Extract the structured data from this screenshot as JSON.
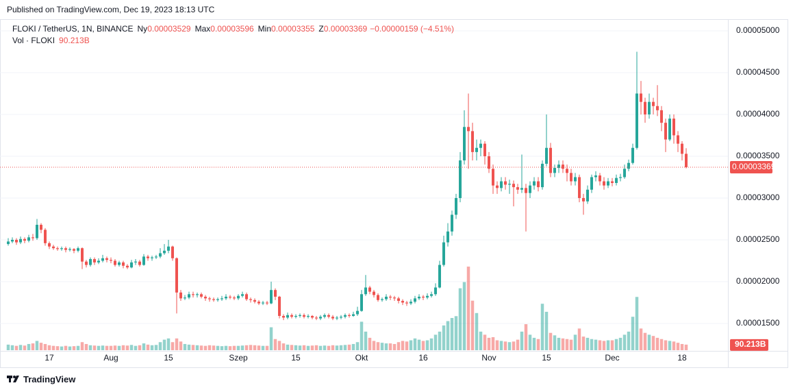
{
  "header": {
    "published": "Published on TradingView.com, Dec 19, 2023 18:13 UTC"
  },
  "chart_data": {
    "type": "candlestick",
    "title": "FLOKI / TetherUS, 1N, BINANCE",
    "ohlc_legend": [
      {
        "label": "Ny",
        "value": "0.00003529"
      },
      {
        "label": "Max",
        "value": "0.00003596"
      },
      {
        "label": "Min",
        "value": "0.00003355"
      },
      {
        "label": "Z",
        "value": "0.00003369"
      }
    ],
    "change": "−0.00000159 (−4.51%)",
    "volume_title": "Vol · FLOKI",
    "volume_last_label": "90.213B",
    "last_price": {
      "value": 3.369e-05,
      "label": "0.00003369"
    },
    "up_color": "#26a69a",
    "down_color": "#ef5350",
    "volume_up_color": "#26a69a80",
    "volume_down_color": "#ef535080",
    "grid": true,
    "ylim": [
      1.172e-05,
      5.139e-05
    ],
    "yticks": [
      {
        "value": 1.5e-05,
        "label": "0.00001500"
      },
      {
        "value": 2e-05,
        "label": "0.00002000"
      },
      {
        "value": 2.5e-05,
        "label": "0.00002500"
      },
      {
        "value": 3e-05,
        "label": "0.00003000"
      },
      {
        "value": 3.5e-05,
        "label": "0.00003500"
      },
      {
        "value": 4e-05,
        "label": "0.00004000"
      },
      {
        "value": 4.5e-05,
        "label": "0.00004500"
      },
      {
        "value": 5e-05,
        "label": "0.00005000"
      }
    ],
    "categories": [
      null,
      null,
      null,
      null,
      null,
      null,
      null,
      null,
      null,
      null,
      "17",
      null,
      null,
      null,
      null,
      null,
      null,
      null,
      null,
      null,
      null,
      null,
      null,
      null,
      null,
      "Aug",
      null,
      null,
      null,
      null,
      null,
      null,
      null,
      null,
      null,
      null,
      null,
      null,
      null,
      "15",
      null,
      null,
      null,
      null,
      null,
      null,
      null,
      null,
      null,
      null,
      null,
      null,
      null,
      null,
      null,
      null,
      "Szep",
      null,
      null,
      null,
      null,
      null,
      null,
      null,
      null,
      null,
      null,
      null,
      null,
      null,
      "15",
      null,
      null,
      null,
      null,
      null,
      null,
      null,
      null,
      null,
      null,
      null,
      null,
      null,
      null,
      null,
      "Okt",
      null,
      null,
      null,
      null,
      null,
      null,
      null,
      null,
      null,
      null,
      null,
      null,
      null,
      null,
      "16",
      null,
      null,
      null,
      null,
      null,
      null,
      null,
      null,
      null,
      null,
      null,
      null,
      null,
      null,
      null,
      "Nov",
      null,
      null,
      null,
      null,
      null,
      null,
      null,
      null,
      null,
      null,
      null,
      null,
      null,
      "15",
      null,
      null,
      null,
      null,
      null,
      null,
      null,
      null,
      null,
      null,
      null,
      null,
      null,
      null,
      null,
      "Dec",
      null,
      null,
      null,
      null,
      null,
      null,
      null,
      null,
      null,
      null,
      null,
      null,
      null,
      null,
      null,
      null,
      "18",
      null
    ],
    "ohlc": [
      [
        2.45e-05,
        2.52e-05,
        2.43e-05,
        2.48e-05
      ],
      [
        2.48e-05,
        2.53e-05,
        2.46e-05,
        2.5e-05
      ],
      [
        2.5e-05,
        2.52e-05,
        2.44e-05,
        2.47e-05
      ],
      [
        2.47e-05,
        2.54e-05,
        2.45e-05,
        2.51e-05
      ],
      [
        2.51e-05,
        2.53e-05,
        2.46e-05,
        2.49e-05
      ],
      [
        2.49e-05,
        2.56e-05,
        2.47e-05,
        2.53e-05
      ],
      [
        2.53e-05,
        2.57e-05,
        2.49e-05,
        2.52e-05
      ],
      [
        2.52e-05,
        2.75e-05,
        2.5e-05,
        2.68e-05
      ],
      [
        2.68e-05,
        2.7e-05,
        2.58e-05,
        2.62e-05
      ],
      [
        2.62e-05,
        2.64e-05,
        2.43e-05,
        2.46e-05
      ],
      [
        2.46e-05,
        2.48e-05,
        2.39e-05,
        2.42e-05
      ],
      [
        2.42e-05,
        2.44e-05,
        2.38e-05,
        2.4e-05
      ],
      [
        2.4e-05,
        2.42e-05,
        2.37e-05,
        2.39e-05
      ],
      [
        2.39e-05,
        2.42e-05,
        2.37e-05,
        2.4e-05
      ],
      [
        2.4e-05,
        2.42e-05,
        2.35e-05,
        2.38e-05
      ],
      [
        2.38e-05,
        2.41e-05,
        2.36e-05,
        2.39e-05
      ],
      [
        2.39e-05,
        2.4e-05,
        2.34e-05,
        2.37e-05
      ],
      [
        2.37e-05,
        2.42e-05,
        2.35e-05,
        2.4e-05
      ],
      [
        2.4e-05,
        2.41e-05,
        2.15e-05,
        2.24e-05
      ],
      [
        2.24e-05,
        2.26e-05,
        2.17e-05,
        2.2e-05
      ],
      [
        2.2e-05,
        2.29e-05,
        2.18e-05,
        2.27e-05
      ],
      [
        2.27e-05,
        2.29e-05,
        2.2e-05,
        2.23e-05
      ],
      [
        2.23e-05,
        2.28e-05,
        2.21e-05,
        2.25e-05
      ],
      [
        2.25e-05,
        2.32e-05,
        2.23e-05,
        2.28e-05
      ],
      [
        2.28e-05,
        2.3e-05,
        2.23e-05,
        2.26e-05
      ],
      [
        2.26e-05,
        2.29e-05,
        2.22e-05,
        2.25e-05
      ],
      [
        2.25e-05,
        2.27e-05,
        2.18e-05,
        2.2e-05
      ],
      [
        2.2e-05,
        2.25e-05,
        2.18e-05,
        2.23e-05
      ],
      [
        2.23e-05,
        2.25e-05,
        2.16e-05,
        2.19e-05
      ],
      [
        2.19e-05,
        2.21e-05,
        2.15e-05,
        2.17e-05
      ],
      [
        2.17e-05,
        2.26e-05,
        2.16e-05,
        2.23e-05
      ],
      [
        2.23e-05,
        2.27e-05,
        2.2e-05,
        2.24e-05
      ],
      [
        2.24e-05,
        2.26e-05,
        2.18e-05,
        2.2e-05
      ],
      [
        2.2e-05,
        2.33e-05,
        2.19e-05,
        2.3e-05
      ],
      [
        2.3e-05,
        2.32e-05,
        2.25e-05,
        2.28e-05
      ],
      [
        2.28e-05,
        2.31e-05,
        2.25e-05,
        2.29e-05
      ],
      [
        2.29e-05,
        2.32e-05,
        2.27e-05,
        2.3e-05
      ],
      [
        2.3e-05,
        2.4e-05,
        2.28e-05,
        2.34e-05
      ],
      [
        2.34e-05,
        2.45e-05,
        2.32e-05,
        2.37e-05
      ],
      [
        2.37e-05,
        2.5e-05,
        2.34e-05,
        2.42e-05
      ],
      [
        2.42e-05,
        2.43e-05,
        2.25e-05,
        2.28e-05
      ],
      [
        2.28e-05,
        2.29e-05,
        1.62e-05,
        1.87e-05
      ],
      [
        1.87e-05,
        1.9e-05,
        1.77e-05,
        1.8e-05
      ],
      [
        1.8e-05,
        1.84e-05,
        1.78e-05,
        1.81e-05
      ],
      [
        1.81e-05,
        1.88e-05,
        1.79e-05,
        1.85e-05
      ],
      [
        1.85e-05,
        1.88e-05,
        1.81e-05,
        1.84e-05
      ],
      [
        1.84e-05,
        1.87e-05,
        1.81e-05,
        1.85e-05
      ],
      [
        1.85e-05,
        1.87e-05,
        1.8e-05,
        1.82e-05
      ],
      [
        1.82e-05,
        1.84e-05,
        1.77e-05,
        1.8e-05
      ],
      [
        1.8e-05,
        1.82e-05,
        1.76e-05,
        1.79e-05
      ],
      [
        1.79e-05,
        1.81e-05,
        1.76e-05,
        1.78e-05
      ],
      [
        1.78e-05,
        1.81e-05,
        1.76e-05,
        1.79e-05
      ],
      [
        1.79e-05,
        1.83e-05,
        1.77e-05,
        1.8e-05
      ],
      [
        1.8e-05,
        1.85e-05,
        1.78e-05,
        1.82e-05
      ],
      [
        1.82e-05,
        1.84e-05,
        1.79e-05,
        1.81e-05
      ],
      [
        1.81e-05,
        1.83e-05,
        1.78e-05,
        1.8e-05
      ],
      [
        1.8e-05,
        1.85e-05,
        1.78e-05,
        1.83e-05
      ],
      [
        1.83e-05,
        1.88e-05,
        1.81e-05,
        1.85e-05
      ],
      [
        1.85e-05,
        1.87e-05,
        1.77e-05,
        1.79e-05
      ],
      [
        1.79e-05,
        1.81e-05,
        1.75e-05,
        1.78e-05
      ],
      [
        1.78e-05,
        1.8e-05,
        1.74e-05,
        1.76e-05
      ],
      [
        1.76e-05,
        1.78e-05,
        1.72e-05,
        1.74e-05
      ],
      [
        1.74e-05,
        1.77e-05,
        1.72e-05,
        1.75e-05
      ],
      [
        1.75e-05,
        1.77e-05,
        1.72e-05,
        1.74e-05
      ],
      [
        1.74e-05,
        2e-05,
        1.73e-05,
        1.9e-05
      ],
      [
        1.9e-05,
        1.92e-05,
        1.78e-05,
        1.82e-05
      ],
      [
        1.82e-05,
        1.83e-05,
        1.56e-05,
        1.59e-05
      ],
      [
        1.59e-05,
        1.61e-05,
        1.54e-05,
        1.57e-05
      ],
      [
        1.57e-05,
        1.63e-05,
        1.55e-05,
        1.6e-05
      ],
      [
        1.6e-05,
        1.62e-05,
        1.56e-05,
        1.58e-05
      ],
      [
        1.58e-05,
        1.61e-05,
        1.56e-05,
        1.59e-05
      ],
      [
        1.59e-05,
        1.62e-05,
        1.57e-05,
        1.6e-05
      ],
      [
        1.6e-05,
        1.62e-05,
        1.56e-05,
        1.58e-05
      ],
      [
        1.58e-05,
        1.61e-05,
        1.56e-05,
        1.59e-05
      ],
      [
        1.59e-05,
        1.6e-05,
        1.55e-05,
        1.57e-05
      ],
      [
        1.57e-05,
        1.59e-05,
        1.54e-05,
        1.56e-05
      ],
      [
        1.56e-05,
        1.6e-05,
        1.54e-05,
        1.58e-05
      ],
      [
        1.58e-05,
        1.62e-05,
        1.56e-05,
        1.6e-05
      ],
      [
        1.6e-05,
        1.62e-05,
        1.56e-05,
        1.58e-05
      ],
      [
        1.58e-05,
        1.6e-05,
        1.54e-05,
        1.56e-05
      ],
      [
        1.56e-05,
        1.59e-05,
        1.54e-05,
        1.57e-05
      ],
      [
        1.57e-05,
        1.6e-05,
        1.55e-05,
        1.58e-05
      ],
      [
        1.58e-05,
        1.62e-05,
        1.56e-05,
        1.6e-05
      ],
      [
        1.6e-05,
        1.62e-05,
        1.57e-05,
        1.59e-05
      ],
      [
        1.59e-05,
        1.64e-05,
        1.58e-05,
        1.61e-05
      ],
      [
        1.61e-05,
        1.7e-05,
        1.59e-05,
        1.65e-05
      ],
      [
        1.65e-05,
        1.9e-05,
        1.64e-05,
        1.85e-05
      ],
      [
        1.85e-05,
        2.08e-05,
        1.83e-05,
        1.93e-05
      ],
      [
        1.93e-05,
        1.95e-05,
        1.85e-05,
        1.88e-05
      ],
      [
        1.88e-05,
        1.9e-05,
        1.81e-05,
        1.84e-05
      ],
      [
        1.84e-05,
        1.86e-05,
        1.76e-05,
        1.78e-05
      ],
      [
        1.78e-05,
        1.81e-05,
        1.76e-05,
        1.79e-05
      ],
      [
        1.79e-05,
        1.85e-05,
        1.77e-05,
        1.82e-05
      ],
      [
        1.82e-05,
        1.84e-05,
        1.78e-05,
        1.81e-05
      ],
      [
        1.81e-05,
        1.83e-05,
        1.77e-05,
        1.8e-05
      ],
      [
        1.8e-05,
        1.82e-05,
        1.74e-05,
        1.77e-05
      ],
      [
        1.77e-05,
        1.79e-05,
        1.72e-05,
        1.75e-05
      ],
      [
        1.75e-05,
        1.77e-05,
        1.71e-05,
        1.74e-05
      ],
      [
        1.74e-05,
        1.79e-05,
        1.72e-05,
        1.76e-05
      ],
      [
        1.76e-05,
        1.83e-05,
        1.74e-05,
        1.8e-05
      ],
      [
        1.8e-05,
        1.85e-05,
        1.78e-05,
        1.82e-05
      ],
      [
        1.82e-05,
        1.84e-05,
        1.78e-05,
        1.81e-05
      ],
      [
        1.81e-05,
        1.86e-05,
        1.79e-05,
        1.83e-05
      ],
      [
        1.83e-05,
        1.88e-05,
        1.81e-05,
        1.85e-05
      ],
      [
        1.85e-05,
        1.98e-05,
        1.83e-05,
        1.93e-05
      ],
      [
        1.93e-05,
        2.25e-05,
        1.92e-05,
        2.2e-05
      ],
      [
        2.2e-05,
        2.55e-05,
        2.18e-05,
        2.47e-05
      ],
      [
        2.47e-05,
        2.7e-05,
        2.42e-05,
        2.6e-05
      ],
      [
        2.6e-05,
        2.85e-05,
        2.55e-05,
        2.8e-05
      ],
      [
        2.8e-05,
        3.05e-05,
        2.75e-05,
        3e-05
      ],
      [
        3e-05,
        3.55e-05,
        2.95e-05,
        3.45e-05
      ],
      [
        3.45e-05,
        4.05e-05,
        3.4e-05,
        3.85e-05
      ],
      [
        3.85e-05,
        4.25e-05,
        3.35e-05,
        3.8e-05
      ],
      [
        3.8e-05,
        3.9e-05,
        3.45e-05,
        3.55e-05
      ],
      [
        3.55e-05,
        3.7e-05,
        3.45e-05,
        3.6e-05
      ],
      [
        3.6e-05,
        3.7e-05,
        3.5e-05,
        3.65e-05
      ],
      [
        3.65e-05,
        3.68e-05,
        3.4e-05,
        3.5e-05
      ],
      [
        3.5e-05,
        3.55e-05,
        3.3e-05,
        3.35e-05
      ],
      [
        3.35e-05,
        3.4e-05,
        3.05e-05,
        3.15e-05
      ],
      [
        3.15e-05,
        3.2e-05,
        3.05e-05,
        3.12e-05
      ],
      [
        3.12e-05,
        3.25e-05,
        3.08e-05,
        3.2e-05
      ],
      [
        3.2e-05,
        3.25e-05,
        3.1e-05,
        3.16e-05
      ],
      [
        3.16e-05,
        3.22e-05,
        3.05e-05,
        3.17e-05
      ],
      [
        3.17e-05,
        3.21e-05,
        2.9e-05,
        3.13e-05
      ],
      [
        3.13e-05,
        3.17e-05,
        3.05e-05,
        3.1e-05
      ],
      [
        3.1e-05,
        3.52e-05,
        3.06e-05,
        3.12e-05
      ],
      [
        3.12e-05,
        3.17e-05,
        2.6e-05,
        3.06e-05
      ],
      [
        3.06e-05,
        3.2e-05,
        3e-05,
        3.15e-05
      ],
      [
        3.15e-05,
        3.25e-05,
        3.1e-05,
        3.2e-05
      ],
      [
        3.2e-05,
        3.25e-05,
        3.08e-05,
        3.13e-05
      ],
      [
        3.13e-05,
        3.45e-05,
        3.1e-05,
        3.41e-05
      ],
      [
        3.41e-05,
        4e-05,
        3.38e-05,
        3.6e-05
      ],
      [
        3.6e-05,
        3.66e-05,
        3.25e-05,
        3.3e-05
      ],
      [
        3.3e-05,
        3.4e-05,
        3.25e-05,
        3.36e-05
      ],
      [
        3.36e-05,
        3.45e-05,
        3.3e-05,
        3.4e-05
      ],
      [
        3.4e-05,
        3.45e-05,
        3.3e-05,
        3.35e-05
      ],
      [
        3.35e-05,
        3.4e-05,
        3.2e-05,
        3.3e-05
      ],
      [
        3.3e-05,
        3.35e-05,
        3.15e-05,
        3.2e-05
      ],
      [
        3.2e-05,
        3.3e-05,
        3.15e-05,
        3.25e-05
      ],
      [
        3.25e-05,
        3.28e-05,
        2.95e-05,
        3e-05
      ],
      [
        3e-05,
        3.05e-05,
        2.8e-05,
        2.96e-05
      ],
      [
        2.96e-05,
        3.15e-05,
        2.93e-05,
        3.1e-05
      ],
      [
        3.1e-05,
        3.28e-05,
        3.06e-05,
        3.25e-05
      ],
      [
        3.25e-05,
        3.32e-05,
        3.2e-05,
        3.27e-05
      ],
      [
        3.27e-05,
        3.3e-05,
        3.15e-05,
        3.2e-05
      ],
      [
        3.2e-05,
        3.25e-05,
        3.1e-05,
        3.15e-05
      ],
      [
        3.15e-05,
        3.24e-05,
        3.12e-05,
        3.2e-05
      ],
      [
        3.2e-05,
        3.24e-05,
        3.14e-05,
        3.18e-05
      ],
      [
        3.18e-05,
        3.28e-05,
        3.15e-05,
        3.24e-05
      ],
      [
        3.24e-05,
        3.29e-05,
        3.2e-05,
        3.25e-05
      ],
      [
        3.25e-05,
        3.4e-05,
        3.23e-05,
        3.35e-05
      ],
      [
        3.35e-05,
        3.46e-05,
        3.32e-05,
        3.42e-05
      ],
      [
        3.42e-05,
        3.65e-05,
        3.4e-05,
        3.6e-05
      ],
      [
        3.6e-05,
        4.75e-05,
        3.58e-05,
        4.25e-05
      ],
      [
        4.25e-05,
        4.4e-05,
        4e-05,
        4.15e-05
      ],
      [
        4.15e-05,
        4.2e-05,
        3.9e-05,
        4e-05
      ],
      [
        4e-05,
        4.25e-05,
        3.95e-05,
        4.15e-05
      ],
      [
        4.15e-05,
        4.2e-05,
        4e-05,
        4.1e-05
      ],
      [
        4.1e-05,
        4.35e-05,
        3.98e-05,
        4.05e-05
      ],
      [
        4.05e-05,
        4.1e-05,
        3.8e-05,
        3.9e-05
      ],
      [
        3.9e-05,
        3.95e-05,
        3.55e-05,
        3.7e-05
      ],
      [
        3.7e-05,
        4e-05,
        3.68e-05,
        3.95e-05
      ],
      [
        3.95e-05,
        4e-05,
        3.65e-05,
        3.75e-05
      ],
      [
        3.75e-05,
        3.8e-05,
        3.55e-05,
        3.65e-05
      ],
      [
        3.65e-05,
        3.68e-05,
        3.45e-05,
        3.529e-05
      ],
      [
        3.529e-05,
        3.596e-05,
        3.355e-05,
        3.369e-05
      ]
    ],
    "volume": [
      90,
      80,
      70,
      85,
      75,
      100,
      110,
      150,
      120,
      100,
      80,
      70,
      65,
      60,
      70,
      60,
      65,
      70,
      130,
      100,
      80,
      75,
      70,
      75,
      70,
      70,
      75,
      70,
      80,
      75,
      85,
      70,
      80,
      110,
      90,
      80,
      85,
      130,
      170,
      190,
      130,
      190,
      140,
      100,
      90,
      85,
      80,
      75,
      70,
      80,
      75,
      70,
      65,
      70,
      65,
      70,
      70,
      75,
      80,
      85,
      80,
      75,
      70,
      70,
      370,
      180,
      150,
      110,
      90,
      85,
      80,
      75,
      80,
      70,
      75,
      80,
      70,
      75,
      70,
      80,
      75,
      80,
      85,
      90,
      100,
      130,
      460,
      300,
      200,
      150,
      130,
      120,
      110,
      110,
      100,
      130,
      150,
      140,
      160,
      190,
      170,
      150,
      160,
      190,
      250,
      300,
      400,
      470,
      520,
      550,
      1000,
      1100,
      1350,
      800,
      600,
      300,
      250,
      200,
      210,
      160,
      150,
      140,
      130,
      140,
      170,
      300,
      420,
      250,
      200,
      180,
      750,
      620,
      280,
      240,
      200,
      190,
      180,
      170,
      250,
      350,
      220,
      200,
      180,
      170,
      160,
      150,
      160,
      160,
      180,
      200,
      250,
      300,
      540,
      860,
      350,
      280,
      250,
      230,
      200,
      180,
      160,
      150,
      140,
      120,
      100,
      90.213
    ]
  },
  "footer": {
    "brand": "TradingView"
  }
}
